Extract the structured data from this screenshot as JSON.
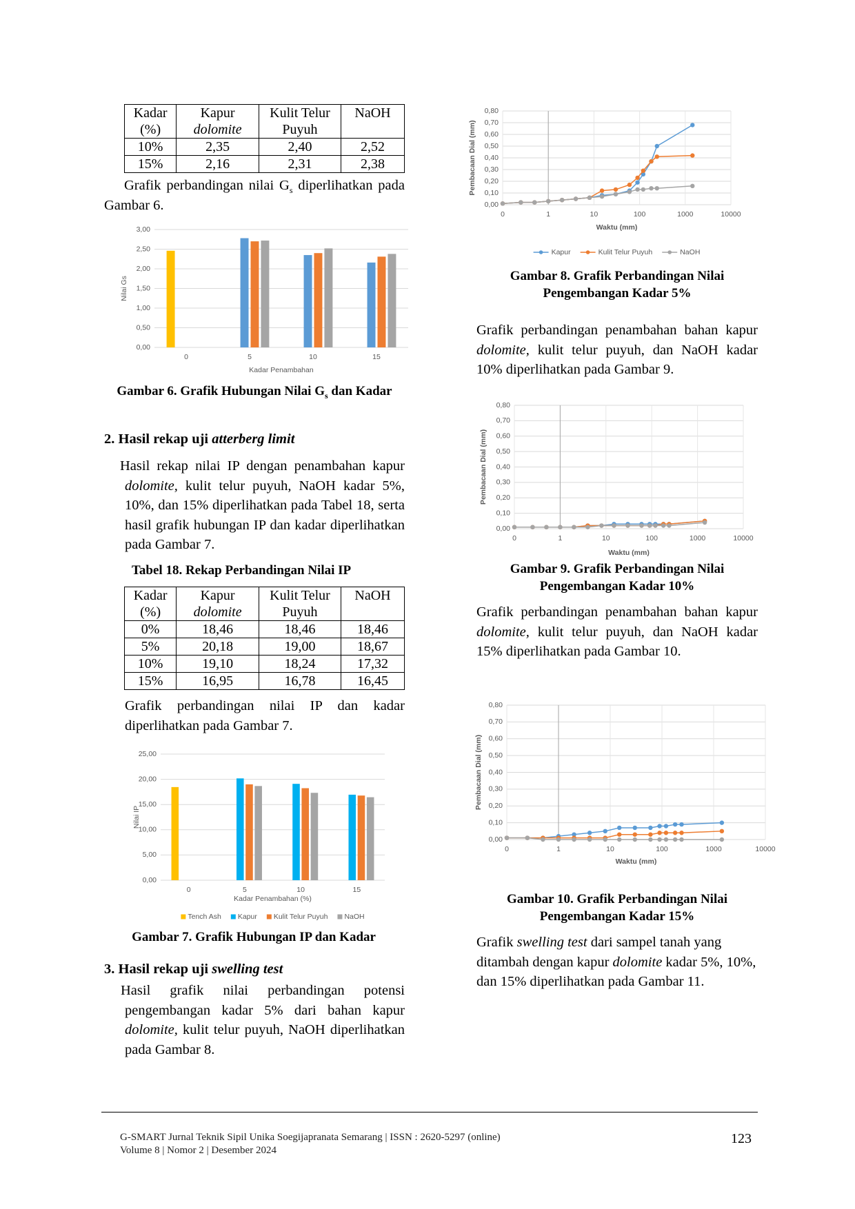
{
  "table_top": {
    "header": [
      [
        "Kadar",
        "(%)"
      ],
      [
        "Kapur",
        "dolomite"
      ],
      [
        "Kulit Telur",
        "Puyuh"
      ],
      [
        "NaOH"
      ]
    ],
    "rows": [
      [
        "10%",
        "2,35",
        "2,40",
        "2,52"
      ],
      [
        "15%",
        "2,16",
        "2,31",
        "2,38"
      ]
    ]
  },
  "table18": {
    "header": [
      [
        "Kadar",
        "(%)"
      ],
      [
        "Kapur",
        "dolomite"
      ],
      [
        "Kulit Telur",
        "Puyuh"
      ],
      [
        "NaOH"
      ]
    ],
    "rows": [
      [
        "0%",
        "18,46",
        "18,46",
        "18,46"
      ],
      [
        "5%",
        "20,18",
        "19,00",
        "18,67"
      ],
      [
        "10%",
        "19,10",
        "18,24",
        "17,32"
      ],
      [
        "15%",
        "16,95",
        "16,78",
        "16,45"
      ]
    ]
  },
  "text": {
    "p_gs": [
      "Grafik perbandingan nilai G",
      "s",
      " diperlihatkan pada Gambar 6."
    ],
    "caption6": [
      "Gambar 6. Grafik Hubungan  Nilai G",
      "s",
      " dan Kadar"
    ],
    "heading2": [
      "2. Hasil rekap uji ",
      "atterberg limit"
    ],
    "p_ip": [
      "Hasil rekap nilai IP dengan penambahan kapur ",
      "dolomite,",
      " kulit telur puyuh, NaOH kadar 5%, 10%, dan 15% diperlihatkan pada Tabel 18, serta hasil grafik hubungan IP dan kadar diperlihatkan pada Gambar 7."
    ],
    "table18_caption": "Tabel 18.  Rekap Perbandingan Nilai IP",
    "p_fig7": "Grafik perbandingan nilai IP dan kadar diperlihatkan pada Gambar 7.",
    "caption7": "Gambar 7. Grafik Hubungan  IP dan Kadar",
    "heading3": [
      "3. Hasil rekap uji ",
      "swelling test"
    ],
    "p_fig8": [
      "Hasil grafik nilai perbandingan potensi pengembangan kadar 5% dari bahan kapur ",
      "dolomite,",
      " kulit telur puyuh, NaOH diperlihatkan pada Gambar 8."
    ],
    "caption8": "Gambar 8. Grafik Perbandingan Nilai Pengembangan Kadar 5%",
    "p_fig9": [
      "Grafik perbandingan penambahan bahan kapur ",
      "dolomite,",
      " kulit telur puyuh, dan NaOH kadar 10% diperlihatkan pada Gambar 9."
    ],
    "caption9": "Gambar 9. Grafik Perbandingan Nilai Pengembangan Kadar 10%",
    "p_fig10": [
      "Grafik perbandingan penambahan bahan kapur ",
      "dolomite,",
      " kulit telur puyuh, dan NaOH kadar 15% diperlihatkan pada Gambar 10."
    ],
    "caption10": "Gambar 10. Grafik Perbandingan Nilai Pengembangan Kadar 15%",
    "p_fig11": [
      "Grafik ",
      "swelling test",
      " dari sampel tanah yang ditambah dengan kapur ",
      "dolomite",
      " kadar 5%, 10%, dan 15% diperlihatkan pada Gambar 11."
    ]
  },
  "footer": {
    "journal": "G-SMART Jurnal Teknik Sipil Unika Soegijapranata Semarang | ISSN : 2620-5297 (online)",
    "volume": "Volume 8 | Nomor 2 | Desember 2024",
    "page": "123"
  },
  "chart_data": [
    {
      "type": "bar",
      "x_label": "Kadar Penambahan",
      "y_label": "Nilai Gs",
      "categories": [
        "0",
        "5",
        "10",
        "15"
      ],
      "series": [
        {
          "color": "#ffc000",
          "values": [
            2.46,
            null,
            null,
            null
          ]
        },
        {
          "color": "#5b9bd5",
          "values": [
            null,
            2.78,
            2.35,
            2.16
          ]
        },
        {
          "color": "#ed7d31",
          "values": [
            null,
            2.7,
            2.4,
            2.31
          ]
        },
        {
          "color": "#a5a5a5",
          "values": [
            null,
            2.72,
            2.52,
            2.38
          ]
        }
      ],
      "ylim": [
        0,
        3
      ],
      "yticks": [
        {
          "value": 0,
          "label": "0,00"
        },
        {
          "value": 0.5,
          "label": "0,50"
        },
        {
          "value": 1,
          "label": "1,00"
        },
        {
          "value": 1.5,
          "label": "1,50"
        },
        {
          "value": 2,
          "label": "2,00"
        },
        {
          "value": 2.5,
          "label": "2,50"
        },
        {
          "value": 3,
          "label": "3,00"
        }
      ],
      "grid": true
    },
    {
      "type": "bar",
      "x_label": "Kadar Penambahan (%)",
      "y_label": "Nilai IP",
      "categories": [
        "0",
        "5",
        "10",
        "15"
      ],
      "series": [
        {
          "name": "Tench Ash",
          "color": "#ffc000",
          "values": [
            18.46,
            null,
            null,
            null
          ]
        },
        {
          "name": "Kapur",
          "color": "#00b0f0",
          "values": [
            null,
            20.18,
            19.1,
            16.95
          ]
        },
        {
          "name": "Kulit Telur Puyuh",
          "color": "#ed7d31",
          "values": [
            null,
            19.0,
            18.24,
            16.78
          ]
        },
        {
          "name": "NaOH",
          "color": "#a5a5a5",
          "values": [
            null,
            18.67,
            17.32,
            16.45
          ]
        }
      ],
      "ylim": [
        0,
        25
      ],
      "yticks": [
        {
          "value": 0,
          "label": "0,00"
        },
        {
          "value": 5,
          "label": "5,00"
        },
        {
          "value": 10,
          "label": "10,00"
        },
        {
          "value": 15,
          "label": "15,00"
        },
        {
          "value": 20,
          "label": "20,00"
        },
        {
          "value": 25,
          "label": "25,00"
        }
      ],
      "grid": true,
      "legend": "bottom"
    },
    {
      "type": "line",
      "x_label": "Waktu (mm)",
      "y_label": "Pembacaan Dial (mm)",
      "x": [
        0.1,
        0.25,
        0.5,
        1,
        2,
        4,
        8,
        15,
        30,
        60,
        90,
        120,
        180,
        240,
        1440
      ],
      "series": [
        {
          "name": "Kapur",
          "color": "#5b9bd5",
          "values": [
            0.01,
            0.02,
            0.02,
            0.03,
            0.04,
            0.05,
            0.06,
            0.08,
            0.09,
            0.12,
            0.19,
            0.26,
            0.37,
            0.5,
            0.68
          ]
        },
        {
          "name": "Kulit Telur Puyuh",
          "color": "#ed7d31",
          "values": [
            0.01,
            0.02,
            0.02,
            0.03,
            0.04,
            0.05,
            0.06,
            0.12,
            0.13,
            0.17,
            0.23,
            0.29,
            0.37,
            0.41,
            0.42
          ]
        },
        {
          "name": "NaOH",
          "color": "#a5a5a5",
          "values": [
            0.01,
            0.02,
            0.02,
            0.03,
            0.04,
            0.05,
            0.06,
            0.07,
            0.09,
            0.11,
            0.13,
            0.13,
            0.14,
            0.14,
            0.16
          ]
        }
      ],
      "xlim": [
        0.1,
        10000
      ],
      "log_x": true,
      "xticks": [
        {
          "value": 0.1,
          "label": "0"
        },
        1,
        10,
        100,
        1000,
        10000
      ],
      "ylim": [
        0,
        0.8
      ],
      "yticks": [
        {
          "value": 0,
          "label": "0,00"
        },
        {
          "value": 0.1,
          "label": "0,10"
        },
        {
          "value": 0.2,
          "label": "0,20"
        },
        {
          "value": 0.3,
          "label": "0,30"
        },
        {
          "value": 0.4,
          "label": "0,40"
        },
        {
          "value": 0.5,
          "label": "0,50"
        },
        {
          "value": 0.6,
          "label": "0,60"
        },
        {
          "value": 0.7,
          "label": "0,70"
        },
        {
          "value": 0.8,
          "label": "0,80"
        }
      ],
      "yaxis_at": 1,
      "grid": true,
      "legend": "bottom"
    },
    {
      "type": "line",
      "x_label": "Waktu (mm)",
      "y_label": "Pembacaan Dial (mm)",
      "x": [
        0.1,
        0.25,
        0.5,
        1,
        2,
        4,
        8,
        15,
        30,
        60,
        90,
        120,
        180,
        240,
        1440
      ],
      "series": [
        {
          "color": "#5b9bd5",
          "values": [
            0.01,
            0.01,
            0.01,
            0.01,
            0.01,
            0.02,
            0.02,
            0.03,
            0.03,
            0.03,
            0.03,
            0.03,
            0.03,
            0.03,
            0.05
          ]
        },
        {
          "color": "#ed7d31",
          "values": [
            0.01,
            0.01,
            0.01,
            0.01,
            0.01,
            0.02,
            0.02,
            0.02,
            0.02,
            0.02,
            0.02,
            0.02,
            0.03,
            0.03,
            0.05
          ]
        },
        {
          "color": "#a5a5a5",
          "values": [
            0.01,
            0.01,
            0.01,
            0.01,
            0.01,
            0.01,
            0.02,
            0.02,
            0.02,
            0.02,
            0.02,
            0.02,
            0.02,
            0.02,
            0.04
          ]
        }
      ],
      "xlim": [
        0.1,
        10000
      ],
      "log_x": true,
      "xticks": [
        {
          "value": 0.1,
          "label": "0"
        },
        1,
        10,
        100,
        1000,
        10000
      ],
      "ylim": [
        0,
        0.8
      ],
      "yticks": [
        {
          "value": 0,
          "label": "0,00"
        },
        {
          "value": 0.1,
          "label": "0,10"
        },
        {
          "value": 0.2,
          "label": "0,20"
        },
        {
          "value": 0.3,
          "label": "0,30"
        },
        {
          "value": 0.4,
          "label": "0,40"
        },
        {
          "value": 0.5,
          "label": "0,50"
        },
        {
          "value": 0.6,
          "label": "0,60"
        },
        {
          "value": 0.7,
          "label": "0,70"
        },
        {
          "value": 0.8,
          "label": "0,80"
        }
      ],
      "yaxis_at": 1,
      "grid": true
    },
    {
      "type": "line",
      "x_label": "Waktu (mm)",
      "y_label": "Pembacaan Dial (mm)",
      "x": [
        0.1,
        0.25,
        0.5,
        1,
        2,
        4,
        8,
        15,
        30,
        60,
        90,
        120,
        180,
        240,
        1440
      ],
      "series": [
        {
          "color": "#5b9bd5",
          "values": [
            0.01,
            0.01,
            0.01,
            0.02,
            0.03,
            0.04,
            0.05,
            0.07,
            0.07,
            0.07,
            0.08,
            0.08,
            0.09,
            0.09,
            0.1
          ]
        },
        {
          "color": "#ed7d31",
          "values": [
            0.01,
            0.01,
            0.01,
            0.01,
            0.01,
            0.01,
            0.01,
            0.03,
            0.03,
            0.03,
            0.04,
            0.04,
            0.04,
            0.04,
            0.05
          ]
        },
        {
          "color": "#a5a5a5",
          "values": [
            0.01,
            0.01,
            0,
            0,
            0,
            0,
            0,
            0,
            0,
            0,
            0,
            0,
            0,
            0,
            0
          ]
        }
      ],
      "xlim": [
        0.1,
        10000
      ],
      "log_x": true,
      "xticks": [
        {
          "value": 0.1,
          "label": "0"
        },
        1,
        10,
        100,
        1000,
        10000
      ],
      "ylim": [
        0,
        0.8
      ],
      "yticks": [
        {
          "value": 0,
          "label": "0,00"
        },
        {
          "value": 0.1,
          "label": "0,10"
        },
        {
          "value": 0.2,
          "label": "0,20"
        },
        {
          "value": 0.3,
          "label": "0,30"
        },
        {
          "value": 0.4,
          "label": "0,40"
        },
        {
          "value": 0.5,
          "label": "0,50"
        },
        {
          "value": 0.6,
          "label": "0,60"
        },
        {
          "value": 0.7,
          "label": "0,70"
        },
        {
          "value": 0.8,
          "label": "0,80"
        }
      ],
      "yaxis_at": 1,
      "grid": true
    }
  ]
}
